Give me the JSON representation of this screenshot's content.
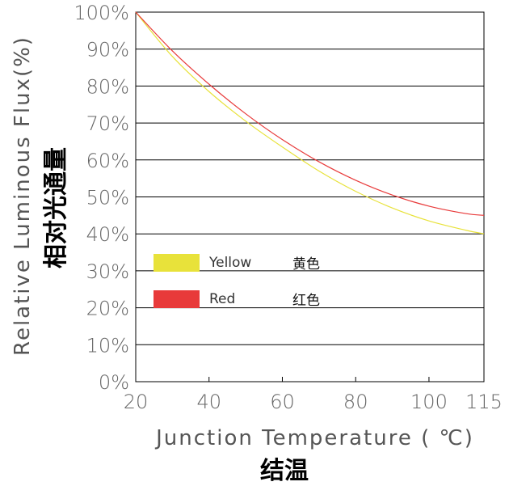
{
  "chart_data": {
    "type": "line",
    "title": "",
    "xlabel": "Junction Temperature  ( ℃)",
    "xlabel_cn": "结温",
    "ylabel": "Relative Luminous Flux(%)",
    "ylabel_cn": "相对光通量",
    "xlim": [
      20,
      115
    ],
    "ylim": [
      0,
      100
    ],
    "x_ticks": [
      "20",
      "40",
      "60",
      "80",
      "100",
      "115"
    ],
    "x_tick_values": [
      20,
      40,
      60,
      80,
      100,
      115
    ],
    "y_ticks": [
      "0%",
      "10%",
      "20%",
      "30%",
      "40%",
      "50%",
      "60%",
      "70%",
      "80%",
      "90%",
      "100%"
    ],
    "y_tick_values": [
      0,
      10,
      20,
      30,
      40,
      50,
      60,
      70,
      80,
      90,
      100
    ],
    "grid": "horizontal",
    "legend_placement": "left",
    "series": [
      {
        "name": "Yellow",
        "name_cn": "黄色",
        "color": "#e8e23a",
        "x": [
          20,
          30,
          40,
          50,
          60,
          70,
          80,
          90,
          100,
          110,
          115
        ],
        "y": [
          100,
          88,
          78.5,
          70.5,
          63.5,
          57,
          51.5,
          47,
          43.5,
          41,
          40
        ]
      },
      {
        "name": "Red",
        "name_cn": "红色",
        "color": "#e83a3a",
        "x": [
          20,
          30,
          40,
          50,
          60,
          70,
          80,
          90,
          100,
          110,
          115
        ],
        "y": [
          100,
          89.5,
          80.5,
          72.5,
          65.5,
          59.5,
          54.5,
          50.5,
          47.5,
          45.5,
          45
        ]
      }
    ]
  }
}
